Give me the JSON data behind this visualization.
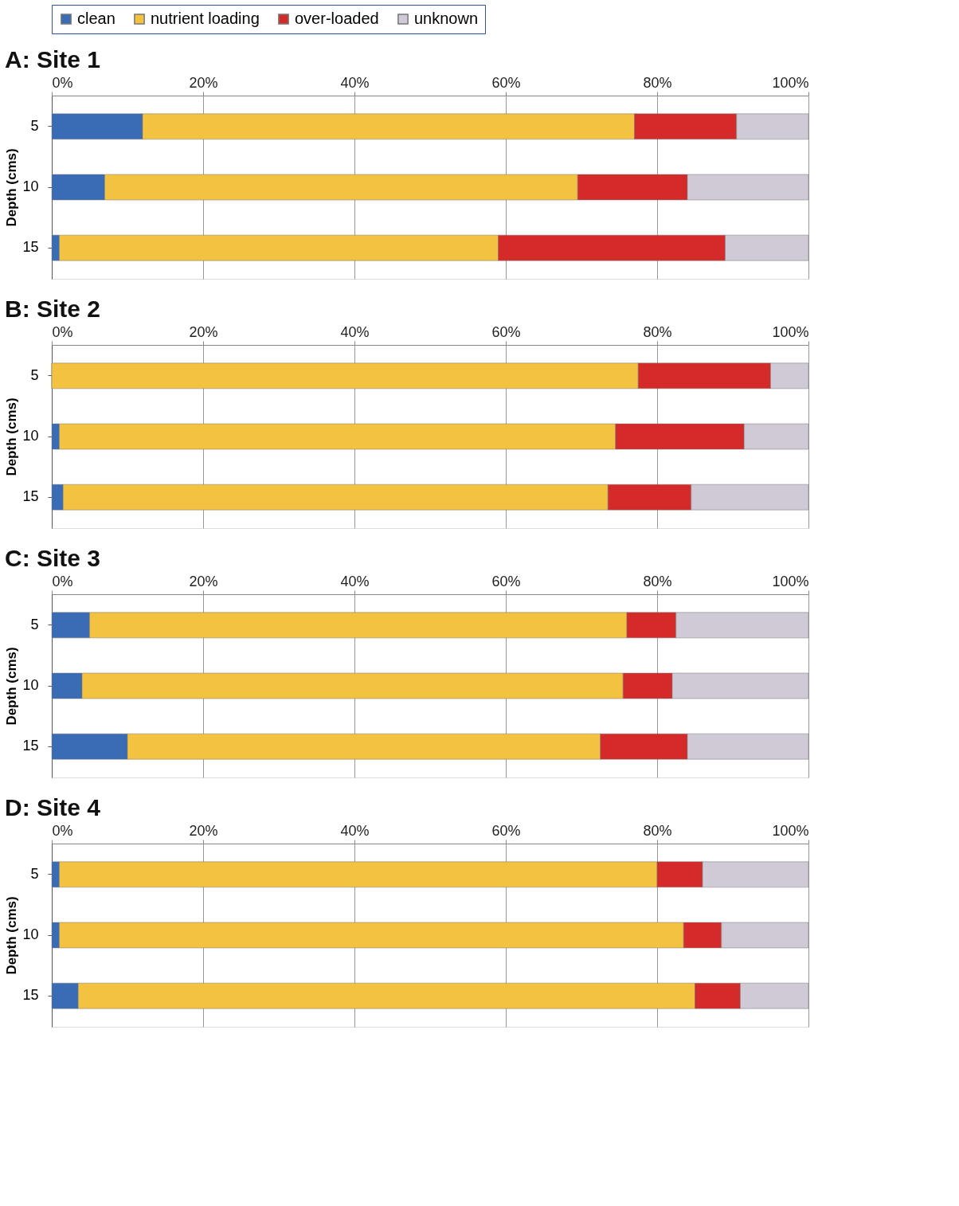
{
  "chart_data": [
    {
      "type": "bar",
      "title": "A: Site 1",
      "orientation": "horizontal",
      "stacked": true,
      "ylabel": "Depth (cms)",
      "categories": [
        "5",
        "10",
        "15"
      ],
      "xlim": [
        0,
        100
      ],
      "xticks": [
        {
          "value": 0,
          "label": "0%"
        },
        {
          "value": 20,
          "label": "20%"
        },
        {
          "value": 40,
          "label": "40%"
        },
        {
          "value": 60,
          "label": "60%"
        },
        {
          "value": 80,
          "label": "80%"
        },
        {
          "value": 100,
          "label": "100%"
        }
      ],
      "grid": "x",
      "legend": "top",
      "series": [
        {
          "name": "clean",
          "color": "#3a6bb5",
          "values": [
            12,
            7,
            1
          ]
        },
        {
          "name": "nutrient loading",
          "color": "#f2c240",
          "values": [
            65,
            62.5,
            58
          ]
        },
        {
          "name": "over-loaded",
          "color": "#d42a2a",
          "values": [
            13.5,
            14.5,
            30
          ]
        },
        {
          "name": "unknown",
          "color": "#cfcad6",
          "values": [
            9.5,
            16,
            11
          ]
        }
      ]
    },
    {
      "type": "bar",
      "title": "B: Site 2",
      "orientation": "horizontal",
      "stacked": true,
      "ylabel": "Depth (cms)",
      "categories": [
        "5",
        "10",
        "15"
      ],
      "xlim": [
        0,
        100
      ],
      "xticks": [
        {
          "value": 0,
          "label": "0%"
        },
        {
          "value": 20,
          "label": "20%"
        },
        {
          "value": 40,
          "label": "40%"
        },
        {
          "value": 60,
          "label": "60%"
        },
        {
          "value": 80,
          "label": "80%"
        },
        {
          "value": 100,
          "label": "100%"
        }
      ],
      "grid": "x",
      "series": [
        {
          "color": "#3a6bb5",
          "values": [
            0,
            1,
            1.5
          ]
        },
        {
          "color": "#f2c240",
          "values": [
            77.5,
            73.5,
            72
          ]
        },
        {
          "color": "#d42a2a",
          "values": [
            17.5,
            17,
            11
          ]
        },
        {
          "color": "#cfcad6",
          "values": [
            5,
            8.5,
            15.5
          ]
        }
      ]
    },
    {
      "type": "bar",
      "title": "C: Site 3",
      "orientation": "horizontal",
      "stacked": true,
      "ylabel": "Depth (cms)",
      "categories": [
        "5",
        "10",
        "15"
      ],
      "xlim": [
        0,
        100
      ],
      "xticks": [
        {
          "value": 0,
          "label": "0%"
        },
        {
          "value": 20,
          "label": "20%"
        },
        {
          "value": 40,
          "label": "40%"
        },
        {
          "value": 60,
          "label": "60%"
        },
        {
          "value": 80,
          "label": "80%"
        },
        {
          "value": 100,
          "label": "100%"
        }
      ],
      "grid": "x",
      "series": [
        {
          "color": "#3a6bb5",
          "values": [
            5,
            4,
            10
          ]
        },
        {
          "color": "#f2c240",
          "values": [
            71,
            71.5,
            62.5
          ]
        },
        {
          "color": "#d42a2a",
          "values": [
            6.5,
            6.5,
            11.5
          ]
        },
        {
          "color": "#cfcad6",
          "values": [
            17.5,
            18,
            16
          ]
        }
      ]
    },
    {
      "type": "bar",
      "title": "D: Site 4",
      "orientation": "horizontal",
      "stacked": true,
      "ylabel": "Depth (cms)",
      "categories": [
        "5",
        "10",
        "15"
      ],
      "xlim": [
        0,
        100
      ],
      "xticks": [
        {
          "value": 0,
          "label": "0%"
        },
        {
          "value": 20,
          "label": "20%"
        },
        {
          "value": 40,
          "label": "40%"
        },
        {
          "value": 60,
          "label": "60%"
        },
        {
          "value": 80,
          "label": "80%"
        },
        {
          "value": 100,
          "label": "100%"
        }
      ],
      "grid": "x",
      "series": [
        {
          "color": "#3a6bb5",
          "values": [
            1,
            1,
            3.5
          ]
        },
        {
          "color": "#f2c240",
          "values": [
            79,
            82.5,
            81.5
          ]
        },
        {
          "color": "#d42a2a",
          "values": [
            6,
            5,
            6
          ]
        },
        {
          "color": "#cfcad6",
          "values": [
            14,
            11.5,
            9
          ]
        }
      ]
    }
  ]
}
